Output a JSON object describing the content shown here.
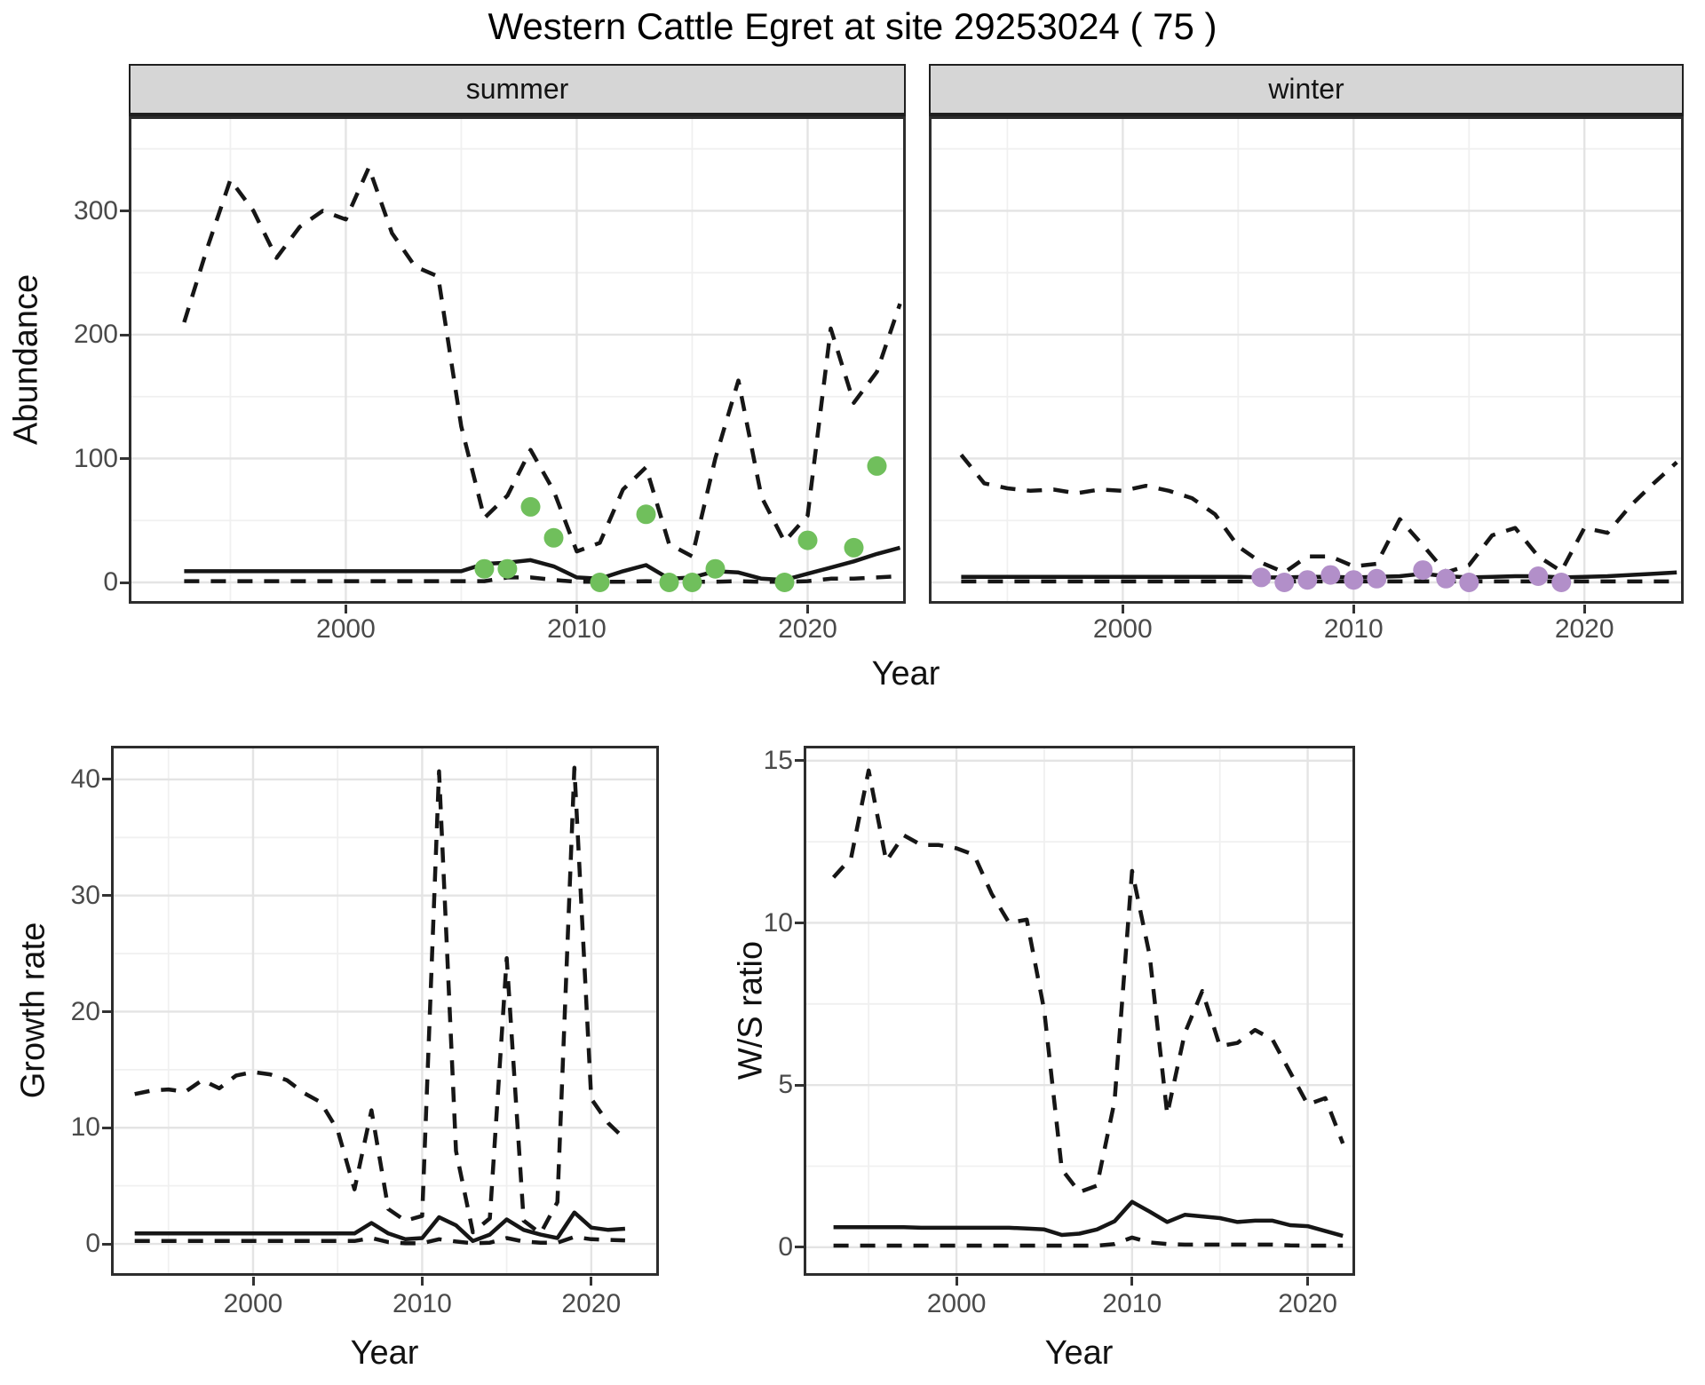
{
  "figure": {
    "title": "Western Cattle Egret at site 29253024 ( 75 )",
    "shared_x_label": "Year"
  },
  "chart_data": [
    {
      "id": "abundance-summer",
      "type": "line",
      "facet_label": "summer",
      "ylabel": "Abundance",
      "xlabel": "Year",
      "xlim": [
        1990.6,
        2024.25
      ],
      "ylim": [
        -17.2,
        376.3
      ],
      "x_major": [
        2000,
        2010,
        2020
      ],
      "x_minor": [
        1995,
        2005,
        2015
      ],
      "y_major": [
        0,
        100,
        200,
        300
      ],
      "y_minor": [
        50,
        150,
        250,
        350
      ],
      "years": [
        1993,
        1994,
        1995,
        1996,
        1997,
        1998,
        1999,
        2000,
        2001,
        2002,
        2003,
        2004,
        2005,
        2006,
        2007,
        2008,
        2009,
        2010,
        2011,
        2012,
        2013,
        2014,
        2015,
        2016,
        2017,
        2018,
        2019,
        2020,
        2021,
        2022,
        2023,
        2024
      ],
      "series": [
        {
          "name": "upper_97.5",
          "style": "dashed",
          "values": [
            210,
            270,
            325,
            300,
            262,
            287,
            300,
            293,
            335,
            282,
            255,
            247,
            126,
            52,
            70,
            107,
            74,
            25,
            32,
            75,
            93,
            31,
            21,
            100,
            163,
            69,
            33,
            54,
            205,
            145,
            170,
            225
          ]
        },
        {
          "name": "lower_2.5",
          "style": "dashed",
          "values": [
            1,
            1,
            1,
            1,
            1,
            1,
            1,
            1,
            1,
            1,
            1,
            1,
            1,
            1,
            4,
            4,
            2,
            0.5,
            0.5,
            0.5,
            1,
            0.5,
            0.5,
            0.5,
            1,
            0.5,
            0.5,
            1,
            3,
            3,
            4,
            5
          ]
        },
        {
          "name": "median",
          "style": "solid",
          "values": [
            9,
            9,
            9,
            9,
            9,
            9,
            9,
            9,
            9,
            9,
            9,
            9,
            9,
            15,
            16,
            18,
            13,
            4,
            3,
            9,
            14,
            3,
            4,
            9,
            8,
            3,
            2,
            7,
            12,
            17,
            23,
            28
          ]
        }
      ],
      "points": {
        "name": "observed_counts",
        "color": "#70bf5c",
        "data": [
          [
            2006,
            11
          ],
          [
            2007,
            11
          ],
          [
            2008,
            61
          ],
          [
            2009,
            36
          ],
          [
            2011,
            0
          ],
          [
            2013,
            55
          ],
          [
            2014,
            0
          ],
          [
            2015,
            0
          ],
          [
            2016,
            11
          ],
          [
            2019,
            0
          ],
          [
            2020,
            34
          ],
          [
            2022,
            28
          ],
          [
            2023,
            94
          ]
        ]
      }
    },
    {
      "id": "abundance-winter",
      "type": "line",
      "facet_label": "winter",
      "ylabel": "Abundance",
      "xlabel": "Year",
      "xlim": [
        1991.6,
        2024.3
      ],
      "ylim": [
        -17.2,
        376.3
      ],
      "x_major": [
        2000,
        2010,
        2020
      ],
      "x_minor": [
        1995,
        2005,
        2015
      ],
      "y_major": [
        0,
        100,
        200,
        300
      ],
      "y_minor": [
        50,
        150,
        250,
        350
      ],
      "years": [
        1993,
        1994,
        1995,
        1996,
        1997,
        1998,
        1999,
        2000,
        2001,
        2002,
        2003,
        2004,
        2005,
        2006,
        2007,
        2008,
        2009,
        2010,
        2011,
        2012,
        2013,
        2014,
        2015,
        2016,
        2017,
        2018,
        2019,
        2020,
        2021,
        2022,
        2023,
        2024
      ],
      "series": [
        {
          "name": "upper_97.5",
          "style": "dashed",
          "values": [
            103,
            80,
            76,
            74,
            75,
            72,
            75,
            74,
            78,
            74,
            68,
            55,
            29,
            16,
            8,
            21,
            21,
            13,
            15,
            51,
            30,
            8,
            14,
            38,
            44,
            21,
            9,
            44,
            40,
            62,
            80,
            97
          ]
        },
        {
          "name": "lower_2.5",
          "style": "dashed",
          "values": [
            0.8,
            0.8,
            0.8,
            0.8,
            0.8,
            0.8,
            0.8,
            0.8,
            0.8,
            0.8,
            0.8,
            0.8,
            0.8,
            0.8,
            0.8,
            0.8,
            0.8,
            0.8,
            0.8,
            0.8,
            0.8,
            0.8,
            0.8,
            0.8,
            0.8,
            0.8,
            0.8,
            0.8,
            0.8,
            0.8,
            0.8,
            0.8
          ]
        },
        {
          "name": "median",
          "style": "solid",
          "values": [
            4.5,
            4.5,
            4.5,
            4.5,
            4.5,
            4.5,
            4.5,
            4.5,
            4.5,
            4.5,
            4.5,
            4.5,
            4.5,
            4,
            4,
            4.5,
            4.5,
            4,
            4.5,
            5,
            7,
            5,
            4,
            4.5,
            5,
            5,
            4,
            4.5,
            5,
            6,
            7,
            8
          ]
        }
      ],
      "points": {
        "name": "observed_counts",
        "color": "#b28fc9",
        "data": [
          [
            2006,
            4
          ],
          [
            2007,
            0
          ],
          [
            2008,
            2
          ],
          [
            2009,
            6
          ],
          [
            2010,
            2
          ],
          [
            2011,
            3
          ],
          [
            2013,
            10
          ],
          [
            2014,
            3
          ],
          [
            2015,
            0
          ],
          [
            2018,
            5
          ],
          [
            2019,
            0
          ]
        ]
      }
    },
    {
      "id": "growth-rate",
      "type": "line",
      "facet_label": null,
      "ylabel": "Growth rate",
      "xlabel": "Year",
      "xlim": [
        1991.6,
        2024.0
      ],
      "ylim": [
        -2.75,
        42.9
      ],
      "x_major": [
        2000,
        2010,
        2020
      ],
      "x_minor": [
        1995,
        2005,
        2015
      ],
      "y_major": [
        0,
        10,
        20,
        30,
        40
      ],
      "y_minor": [
        5,
        15,
        25,
        35
      ],
      "years": [
        1993,
        1994,
        1995,
        1996,
        1997,
        1998,
        1999,
        2000,
        2001,
        2002,
        2003,
        2004,
        2005,
        2006,
        2007,
        2008,
        2009,
        2010,
        2011,
        2012,
        2013,
        2014,
        2015,
        2016,
        2017,
        2018,
        2019,
        2020,
        2021,
        2022
      ],
      "series": [
        {
          "name": "upper_97.5",
          "style": "dashed",
          "values": [
            12.9,
            13.2,
            13.3,
            13.1,
            14.1,
            13.4,
            14.5,
            14.8,
            14.6,
            14.1,
            13.0,
            12.2,
            9.8,
            4.7,
            11.5,
            3.0,
            2.0,
            2.4,
            40.7,
            8.0,
            1.0,
            2.2,
            24.6,
            2.0,
            0.9,
            3.6,
            41.0,
            12.5,
            10.4,
            9.0
          ]
        },
        {
          "name": "lower_2.5",
          "style": "dashed",
          "values": [
            0.25,
            0.25,
            0.25,
            0.25,
            0.25,
            0.25,
            0.25,
            0.25,
            0.25,
            0.25,
            0.25,
            0.25,
            0.25,
            0.25,
            0.5,
            0.15,
            0.05,
            0.05,
            0.4,
            0.2,
            0.05,
            0.1,
            0.5,
            0.2,
            0.1,
            0.1,
            0.6,
            0.4,
            0.35,
            0.3
          ]
        },
        {
          "name": "median",
          "style": "solid",
          "values": [
            0.9,
            0.9,
            0.9,
            0.9,
            0.9,
            0.9,
            0.9,
            0.9,
            0.9,
            0.9,
            0.9,
            0.9,
            0.9,
            0.9,
            1.8,
            0.9,
            0.4,
            0.5,
            2.3,
            1.6,
            0.25,
            0.8,
            2.1,
            1.2,
            0.8,
            0.5,
            2.7,
            1.4,
            1.2,
            1.3
          ]
        }
      ],
      "points": null
    },
    {
      "id": "ws-ratio",
      "type": "line",
      "facet_label": null,
      "ylabel": "W/S ratio",
      "xlabel": "Year",
      "xlim": [
        1991.3,
        2022.7
      ],
      "ylim": [
        -0.88,
        15.46
      ],
      "x_major": [
        2000,
        2010,
        2020
      ],
      "x_minor": [
        1995,
        2005,
        2015
      ],
      "y_major": [
        0,
        5,
        10,
        15
      ],
      "y_minor": [
        2.5,
        7.5,
        12.5
      ],
      "years": [
        1993,
        1994,
        1995,
        1996,
        1997,
        1998,
        1999,
        2000,
        2001,
        2002,
        2003,
        2004,
        2005,
        2006,
        2007,
        2008,
        2009,
        2010,
        2011,
        2012,
        2013,
        2014,
        2015,
        2016,
        2017,
        2018,
        2019,
        2020,
        2021,
        2022
      ],
      "series": [
        {
          "name": "upper_97.5",
          "style": "dashed",
          "values": [
            11.4,
            12.0,
            14.7,
            11.9,
            12.7,
            12.4,
            12.4,
            12.3,
            12.1,
            10.9,
            10.0,
            10.1,
            7.3,
            2.4,
            1.7,
            1.9,
            4.5,
            11.6,
            9.0,
            4.1,
            6.6,
            7.9,
            6.2,
            6.3,
            6.7,
            6.4,
            5.4,
            4.4,
            4.6,
            3.2
          ]
        },
        {
          "name": "lower_2.5",
          "style": "dashed",
          "values": [
            0.05,
            0.05,
            0.05,
            0.05,
            0.05,
            0.05,
            0.05,
            0.05,
            0.05,
            0.05,
            0.05,
            0.05,
            0.05,
            0.05,
            0.05,
            0.05,
            0.1,
            0.3,
            0.15,
            0.1,
            0.08,
            0.08,
            0.08,
            0.08,
            0.08,
            0.08,
            0.06,
            0.05,
            0.05,
            0.05
          ]
        },
        {
          "name": "median",
          "style": "solid",
          "values": [
            0.62,
            0.62,
            0.62,
            0.62,
            0.62,
            0.6,
            0.6,
            0.6,
            0.6,
            0.6,
            0.6,
            0.58,
            0.55,
            0.38,
            0.42,
            0.55,
            0.8,
            1.4,
            1.1,
            0.78,
            1.0,
            0.95,
            0.9,
            0.78,
            0.82,
            0.82,
            0.68,
            0.65,
            0.5,
            0.35
          ]
        }
      ],
      "points": null
    }
  ],
  "style": {
    "line_color": "#161616",
    "strip_bg": "#d6d6d6",
    "major_grid": "#e4e4e4",
    "minor_grid": "#f0f0f0",
    "panel_border": "#2d2d2d",
    "tick_text": "#4a4a4a",
    "summer_point_color": "#70bf5c",
    "winter_point_color": "#b28fc9"
  }
}
